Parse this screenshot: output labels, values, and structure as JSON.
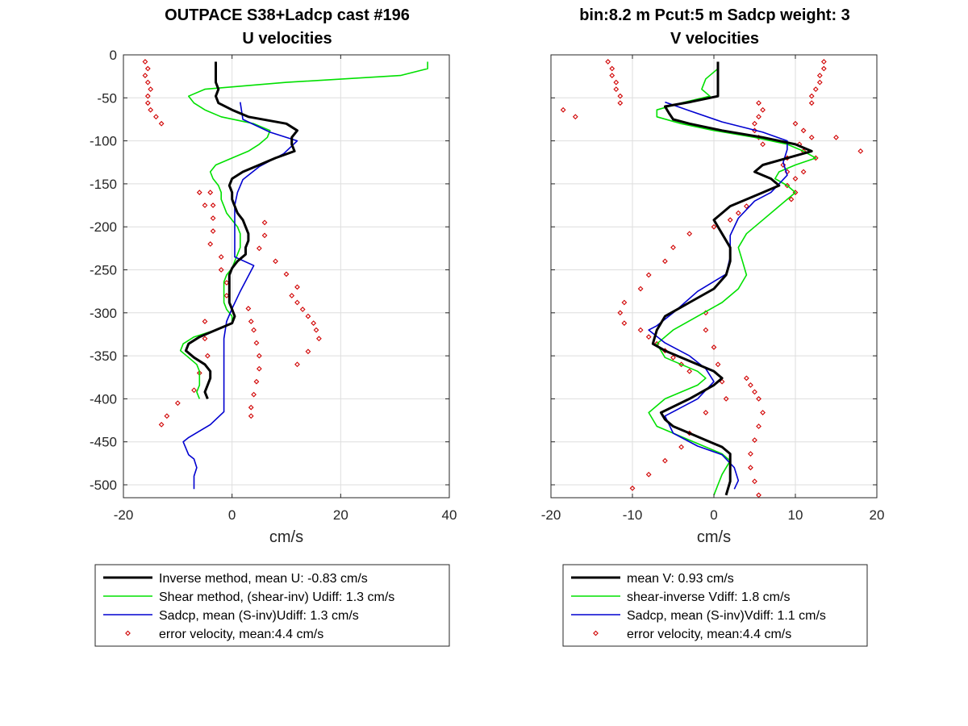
{
  "chart_data": [
    {
      "type": "line",
      "title": "OUTPACE S38+Ladcp cast #196",
      "subtitle": "U velocities",
      "xlabel": "cm/s",
      "ylabel": "",
      "xlim": [
        -20,
        40
      ],
      "ylim": [
        -515,
        0
      ],
      "xticks": [
        -20,
        0,
        20,
        40
      ],
      "yticks": [
        0,
        -50,
        -100,
        -150,
        -200,
        -250,
        -300,
        -350,
        -400,
        -450,
        -500
      ],
      "grid": true,
      "legend_position": "bottom-outside",
      "legend": [
        "Inverse method, mean U:  -0.83 cm/s",
        "Shear method, (shear-inv)  Udiff:  1.3 cm/s",
        "Sadcp, mean (S-inv)Udiff: 1.3 cm/s",
        "error velocity, mean:4.4 cm/s"
      ],
      "series": [
        {
          "color": "#000000",
          "kind": "line",
          "width": 3,
          "x": [
            -3,
            -3,
            -3,
            -3,
            -2.5,
            -3,
            -2.5,
            0,
            3,
            10,
            12,
            11,
            11,
            11.5,
            8,
            5,
            2,
            0,
            -0.5,
            0,
            0,
            0.5,
            1,
            2,
            2.5,
            3,
            3,
            2.5,
            2.5,
            1,
            0,
            -0.5,
            -0.5,
            -0.5,
            -0.5,
            -0.5,
            0,
            0.5,
            0,
            -3,
            -6,
            -8,
            -8.5,
            -7,
            -5,
            -4,
            -4,
            -4.5,
            -5,
            -4.5
          ],
          "y": [
            -8,
            -16,
            -24,
            -32,
            -40,
            -48,
            -56,
            -64,
            -72,
            -80,
            -88,
            -96,
            -104,
            -112,
            -120,
            -128,
            -136,
            -144,
            -152,
            -160,
            -168,
            -176,
            -184,
            -192,
            -200,
            -208,
            -216,
            -224,
            -232,
            -240,
            -248,
            -256,
            -264,
            -272,
            -280,
            -288,
            -296,
            -304,
            -312,
            -320,
            -328,
            -336,
            -344,
            -352,
            -360,
            -368,
            -376,
            -384,
            -392,
            -400
          ]
        },
        {
          "color": "#00e000",
          "kind": "line",
          "width": 1.6,
          "x": [
            36,
            36,
            31,
            10,
            -5,
            -8,
            -7,
            -5,
            -2,
            4,
            7,
            6.5,
            5,
            3,
            0,
            -3,
            -4,
            -3.5,
            -2.5,
            -2,
            -2,
            -1.5,
            -1,
            0,
            1,
            1.5,
            1.5,
            1.5,
            1,
            0.5,
            0,
            -1,
            -1.5,
            -1.5,
            -1.5,
            -1.5,
            -1,
            0,
            0,
            -3,
            -7,
            -9,
            -9.5,
            -8,
            -6.5,
            -6,
            -6,
            -6,
            -6.5,
            -6
          ],
          "y": [
            -8,
            -16,
            -24,
            -32,
            -40,
            -48,
            -56,
            -64,
            -72,
            -80,
            -88,
            -96,
            -104,
            -112,
            -120,
            -128,
            -136,
            -144,
            -152,
            -160,
            -168,
            -176,
            -184,
            -192,
            -200,
            -208,
            -216,
            -224,
            -232,
            -240,
            -248,
            -256,
            -264,
            -272,
            -280,
            -288,
            -296,
            -304,
            -312,
            -320,
            -328,
            -336,
            -344,
            -352,
            -360,
            -368,
            -376,
            -384,
            -392,
            -400
          ]
        },
        {
          "color": "#0000d0",
          "kind": "line",
          "width": 1.6,
          "x": [
            1.5,
            2,
            7,
            12,
            9.5,
            5,
            2,
            1,
            0.5,
            0.5,
            0.5,
            0.5,
            4,
            1.5,
            0,
            -1,
            -1.5,
            -1.5,
            -1.5,
            -1.5,
            -1.5,
            -1.5,
            -1.5,
            -4,
            -8,
            -9,
            -8,
            -7,
            -6.5,
            -7,
            -7,
            -7
          ],
          "y": [
            -55,
            -75,
            -90,
            -100,
            -115,
            -130,
            -145,
            -160,
            -175,
            -195,
            -215,
            -235,
            -245,
            -275,
            -295,
            -310,
            -330,
            -350,
            -365,
            -385,
            -395,
            -405,
            -415,
            -430,
            -445,
            -450,
            -465,
            -470,
            -480,
            -490,
            -495,
            -505
          ]
        },
        {
          "color": "#d00000",
          "kind": "scatter",
          "x": [
            -16,
            -15.5,
            -16,
            -15.5,
            -15,
            -15.5,
            -15.5,
            -15,
            -14,
            -13,
            -4,
            -3.5,
            6,
            6,
            5,
            8,
            10,
            12,
            11,
            12,
            13,
            14,
            15,
            15.5,
            16,
            14,
            12,
            -6,
            -5,
            -3.5,
            -3.5,
            -4,
            -2,
            -2,
            -1,
            -1,
            3,
            3.5,
            4,
            4.5,
            5,
            5,
            4.5,
            4,
            3.5,
            3.5,
            -5,
            -5,
            -4.5,
            -6,
            -7,
            -10,
            -12,
            -13
          ],
          "y": [
            -8,
            -16,
            -24,
            -32,
            -40,
            -48,
            -56,
            -64,
            -72,
            -80,
            -160,
            -175,
            -195,
            -210,
            -225,
            -240,
            -255,
            -270,
            -280,
            -288,
            -296,
            -304,
            -312,
            -320,
            -330,
            -345,
            -360,
            -160,
            -175,
            -190,
            -205,
            -220,
            -235,
            -250,
            -265,
            -280,
            -295,
            -310,
            -320,
            -335,
            -350,
            -365,
            -380,
            -395,
            -410,
            -420,
            -310,
            -330,
            -350,
            -370,
            -390,
            -405,
            -420,
            -430
          ]
        }
      ]
    },
    {
      "type": "line",
      "title": "bin:8.2 m  Pcut:5 m  Sadcp weight: 3",
      "subtitle": "V velocities",
      "xlabel": "cm/s",
      "ylabel": "",
      "xlim": [
        -20,
        20
      ],
      "ylim": [
        -515,
        0
      ],
      "xticks": [
        -20,
        -10,
        0,
        10,
        20
      ],
      "yticks": [
        0,
        -50,
        -100,
        -150,
        -200,
        -250,
        -300,
        -350,
        -400,
        -450,
        -500
      ],
      "grid": true,
      "legend_position": "bottom-outside",
      "legend": [
        "mean V:  0.93 cm/s",
        "shear-inverse Vdiff:  1.8 cm/s",
        "Sadcp, mean (S-inv)Vdiff: 1.1 cm/s",
        "error velocity, mean:4.4 cm/s"
      ],
      "series": [
        {
          "color": "#000000",
          "kind": "line",
          "width": 3,
          "x": [
            0.5,
            0.5,
            0.5,
            0.5,
            0.5,
            -3,
            -6,
            -5.5,
            -5,
            -3,
            1,
            6,
            10,
            12,
            9,
            6,
            5,
            7,
            8,
            6,
            4,
            2,
            0,
            1,
            2,
            2,
            1.5,
            0,
            -3,
            -6,
            -7,
            -7.5,
            -6,
            -4,
            -2,
            0,
            1,
            0,
            -3,
            -6.5,
            -6,
            -5,
            -3,
            -1,
            1,
            2,
            2,
            2,
            2,
            1.5
          ],
          "y": [
            -8,
            -16,
            -24,
            -32,
            -48,
            -55,
            -60,
            -68,
            -75,
            -80,
            -88,
            -96,
            -104,
            -112,
            -120,
            -128,
            -136,
            -144,
            -152,
            -160,
            -168,
            -176,
            -192,
            -208,
            -224,
            -240,
            -256,
            -272,
            -288,
            -304,
            -320,
            -336,
            -344,
            -352,
            -360,
            -368,
            -376,
            -384,
            -400,
            -416,
            -424,
            -432,
            -440,
            -448,
            -456,
            -464,
            -472,
            -480,
            -496,
            -512
          ]
        },
        {
          "color": "#00e000",
          "kind": "line",
          "width": 1.6,
          "x": [
            0.5,
            0.5,
            -1,
            -1.5,
            -0.5,
            -4,
            -7,
            -7,
            -4,
            0,
            5,
            9,
            11,
            12.5,
            10,
            8,
            7.5,
            9,
            10,
            8,
            6,
            4,
            3,
            3.5,
            4,
            3,
            1,
            -2,
            -5,
            -7,
            -6,
            -4,
            -2,
            -1,
            -2,
            -4,
            -6,
            -8,
            -7,
            -5,
            -3,
            -1,
            1,
            2,
            1,
            0.5,
            0
          ],
          "y": [
            -8,
            -16,
            -28,
            -40,
            -48,
            -56,
            -64,
            -72,
            -80,
            -88,
            -96,
            -104,
            -112,
            -120,
            -128,
            -136,
            -144,
            -152,
            -160,
            -176,
            -192,
            -208,
            -224,
            -240,
            -256,
            -272,
            -288,
            -304,
            -320,
            -336,
            -352,
            -360,
            -368,
            -376,
            -384,
            -392,
            -400,
            -416,
            -432,
            -440,
            -448,
            -456,
            -464,
            -472,
            -488,
            -500,
            -512
          ]
        },
        {
          "color": "#0000d0",
          "kind": "line",
          "width": 1.6,
          "x": [
            -6,
            -3,
            1,
            6,
            9,
            9,
            8.5,
            9,
            8,
            7,
            5,
            3,
            2,
            2,
            1.5,
            -2,
            -5,
            -7,
            -8,
            -6,
            -3,
            -1,
            0,
            -2,
            -4,
            -6,
            -5,
            -2,
            1,
            2.5,
            3,
            2.5
          ],
          "y": [
            -55,
            -65,
            -78,
            -90,
            -100,
            -110,
            -125,
            -140,
            -150,
            -160,
            -170,
            -190,
            -210,
            -235,
            -255,
            -275,
            -300,
            -315,
            -320,
            -335,
            -350,
            -365,
            -380,
            -400,
            -410,
            -420,
            -440,
            -455,
            -465,
            -480,
            -495,
            -505
          ]
        },
        {
          "color": "#d00000",
          "kind": "scatter",
          "x": [
            -13,
            -12.5,
            -12.5,
            -12,
            -12,
            -11.5,
            -11.5,
            -18.5,
            -17,
            5.5,
            6,
            5.5,
            5,
            5,
            5.5,
            6,
            10,
            11,
            12,
            10.5,
            11,
            9,
            8.5,
            9,
            10,
            13.5,
            13.5,
            13,
            13,
            12.5,
            12,
            12,
            15,
            18,
            12.5,
            11,
            9,
            10,
            9.5,
            4,
            3,
            2,
            0,
            -3,
            -5,
            -6,
            -8,
            -9,
            -11,
            -11.5,
            -11,
            -9,
            -8,
            -7,
            -6,
            -5,
            -4,
            -3,
            4,
            4.5,
            5,
            5.5,
            6,
            5.5,
            5,
            4.5,
            4.5,
            5,
            5.5,
            -3,
            -4,
            -6,
            -8,
            -10,
            -1,
            -1,
            0,
            0.5,
            1,
            1.5,
            -1
          ],
          "y": [
            -8,
            -16,
            -24,
            -32,
            -40,
            -48,
            -56,
            -64,
            -72,
            -56,
            -64,
            -72,
            -80,
            -88,
            -96,
            -104,
            -80,
            -88,
            -96,
            -104,
            -112,
            -120,
            -128,
            -136,
            -144,
            -8,
            -16,
            -24,
            -32,
            -40,
            -48,
            -56,
            -96,
            -112,
            -120,
            -136,
            -152,
            -160,
            -168,
            -176,
            -184,
            -192,
            -200,
            -208,
            -224,
            -240,
            -256,
            -272,
            -288,
            -300,
            -312,
            -320,
            -328,
            -336,
            -344,
            -352,
            -360,
            -368,
            -376,
            -384,
            -392,
            -400,
            -416,
            -432,
            -448,
            -464,
            -480,
            -496,
            -512,
            -440,
            -456,
            -472,
            -488,
            -504,
            -300,
            -320,
            -340,
            -360,
            -380,
            -400,
            -416
          ]
        }
      ]
    }
  ]
}
